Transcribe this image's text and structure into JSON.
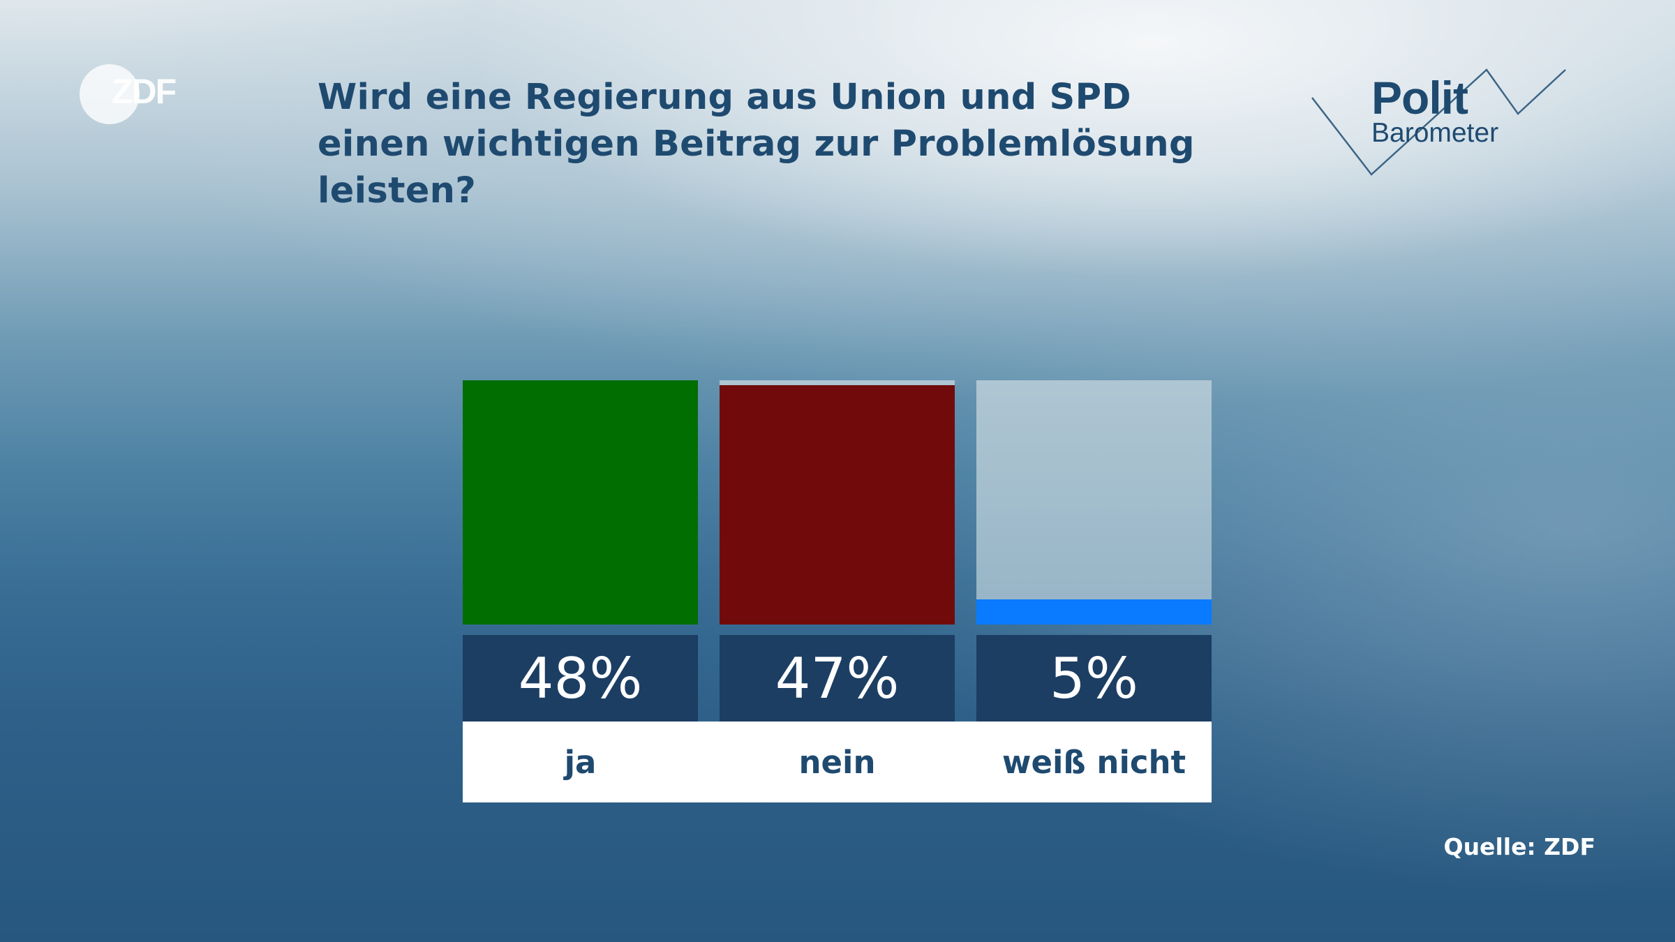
{
  "branding": {
    "broadcaster": "ZDF",
    "program_line1": "Polit",
    "program_line2": "Barometer"
  },
  "title": "Wird eine Regierung aus Union und SPD einen wichtigen Beitrag zur Problemlösung leisten?",
  "source": "Quelle: ZDF",
  "chart_data": {
    "type": "bar",
    "title": "Wird eine Regierung aus Union und SPD einen wichtigen Beitrag zur Problemlösung leisten?",
    "categories": [
      "ja",
      "nein",
      "weiß nicht"
    ],
    "values": [
      48,
      47,
      5
    ],
    "value_labels": [
      "48%",
      "47%",
      "5%"
    ],
    "colors": [
      "#006e00",
      "#710b0b",
      "#0a7aff"
    ],
    "ylim": [
      0,
      48
    ],
    "unit": "%",
    "grid": false,
    "legend": "none"
  },
  "colors": {
    "title_text": "#1f4a70",
    "value_box": "#1c3e63",
    "bar_background": "#a8c1cf"
  }
}
